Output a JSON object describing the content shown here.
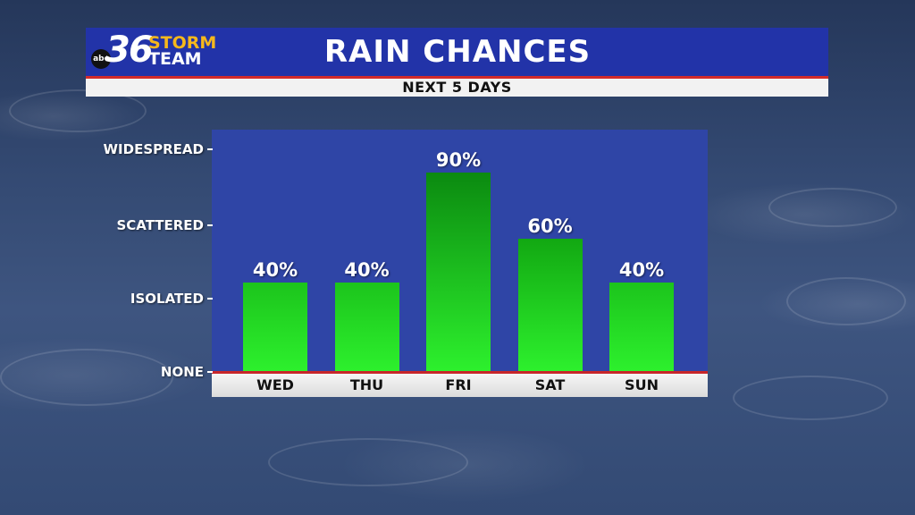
{
  "header": {
    "title": "RAIN CHANCES",
    "subtitle": "NEXT 5 DAYS"
  },
  "logo": {
    "network": "abc",
    "number": "36",
    "line1": "STORM",
    "line2": "TEAM"
  },
  "colors": {
    "header_bg": "#2233a8",
    "accent_red": "#d22b2b",
    "panel_bg": "#2f45a6",
    "logo_gold": "#f6b81c",
    "bar_green": "#22dd22"
  },
  "chart_data": {
    "type": "bar",
    "categories": [
      "WED",
      "THU",
      "FRI",
      "SAT",
      "SUN"
    ],
    "values": [
      40,
      40,
      90,
      60,
      40
    ],
    "value_labels": [
      "40%",
      "40%",
      "90%",
      "60%",
      "40%"
    ],
    "y_tick_labels": [
      "NONE",
      "ISOLATED",
      "SCATTERED",
      "WIDESPREAD"
    ],
    "title": "RAIN CHANCES",
    "subtitle": "NEXT 5 DAYS",
    "xlabel": "",
    "ylabel": "",
    "ylim": [
      0,
      100
    ],
    "grid": false
  }
}
